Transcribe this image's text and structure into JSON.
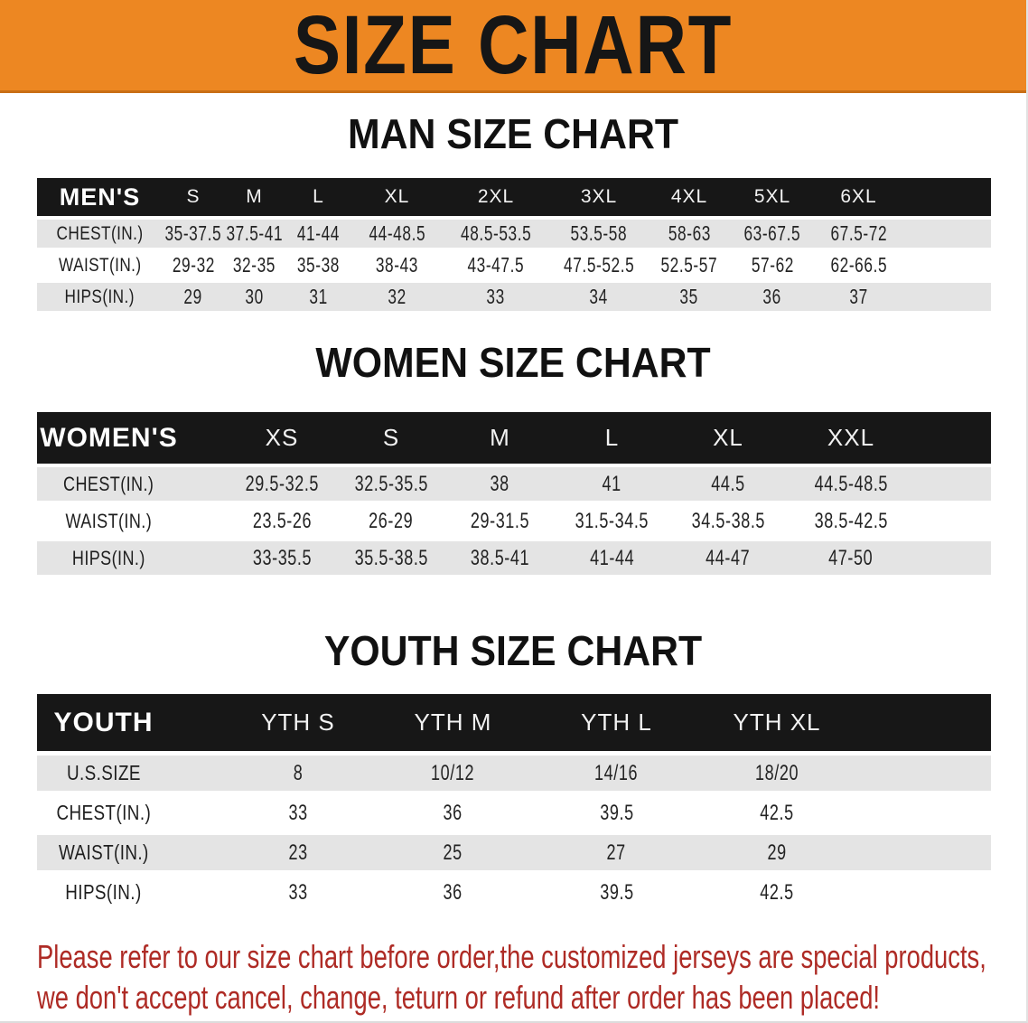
{
  "banner": {
    "title": "SIZE CHART",
    "bg_color": "#ED8722"
  },
  "colors": {
    "header_row_bg": "#171717",
    "alt_row_bg": "#E4E4E4",
    "footer_text": "#AE2B25"
  },
  "sections": [
    {
      "title": "MAN SIZE CHART",
      "columns": [
        "MEN'S",
        "S",
        "M",
        "L",
        "XL",
        "2XL",
        "3XL",
        "4XL",
        "5XL",
        "6XL"
      ],
      "rows": [
        [
          "CHEST(IN.)",
          "35-37.5",
          "37.5-41",
          "41-44",
          "44-48.5",
          "48.5-53.5",
          "53.5-58",
          "58-63",
          "63-67.5",
          "67.5-72"
        ],
        [
          "WAIST(IN.)",
          "29-32",
          "32-35",
          "35-38",
          "38-43",
          "43-47.5",
          "47.5-52.5",
          "52.5-57",
          "57-62",
          "62-66.5"
        ],
        [
          "HIPS(IN.)",
          "29",
          "30",
          "31",
          "32",
          "33",
          "34",
          "35",
          "36",
          "37"
        ]
      ]
    },
    {
      "title": "WOMEN SIZE CHART",
      "columns": [
        "WOMEN'S",
        "XS",
        "S",
        "M",
        "L",
        "XL",
        "XXL"
      ],
      "rows": [
        [
          "CHEST(IN.)",
          "29.5-32.5",
          "32.5-35.5",
          "38",
          "41",
          "44.5",
          "44.5-48.5"
        ],
        [
          "WAIST(IN.)",
          "23.5-26",
          "26-29",
          "29-31.5",
          "31.5-34.5",
          "34.5-38.5",
          "38.5-42.5"
        ],
        [
          "HIPS(IN.)",
          "33-35.5",
          "35.5-38.5",
          "38.5-41",
          "41-44",
          "44-47",
          "47-50"
        ]
      ]
    },
    {
      "title": "YOUTH SIZE CHART",
      "columns": [
        "YOUTH",
        "YTH S",
        "YTH M",
        "YTH L",
        "YTH XL"
      ],
      "rows": [
        [
          "U.S.SIZE",
          "8",
          "10/12",
          "14/16",
          "18/20"
        ],
        [
          "CHEST(IN.)",
          "33",
          "36",
          "39.5",
          "42.5"
        ],
        [
          "WAIST(IN.)",
          "23",
          "25",
          "27",
          "29"
        ],
        [
          "HIPS(IN.)",
          "33",
          "36",
          "39.5",
          "42.5"
        ]
      ]
    }
  ],
  "footer": {
    "line1": "Please refer to our size chart before order,the customized jerseys are special products,",
    "line2": "we don't accept cancel, change, teturn or refund after order has been placed!"
  }
}
